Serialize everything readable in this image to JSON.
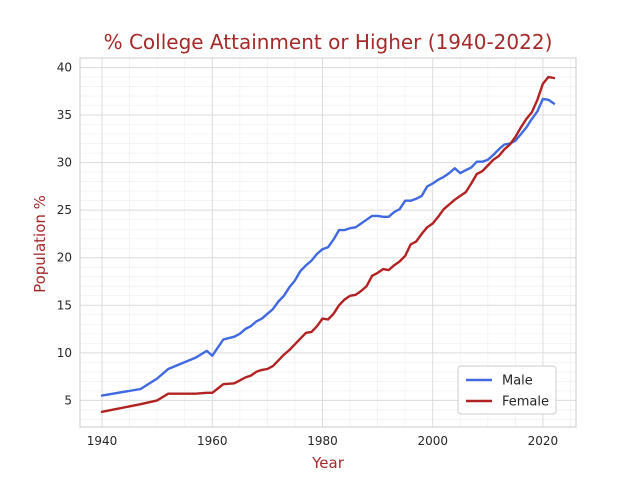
{
  "chart_data": {
    "type": "line",
    "title": "% College Attainment or Higher (1940-2022)",
    "xlabel": "Year",
    "ylabel": "Population %",
    "xlim": [
      1936,
      2026
    ],
    "ylim": [
      2.2,
      41
    ],
    "xticks": [
      1940,
      1960,
      1980,
      2000,
      2020
    ],
    "yticks": [
      5,
      10,
      15,
      20,
      25,
      30,
      35,
      40
    ],
    "grid": true,
    "legend_position": "bottom-right",
    "colors": {
      "title": "#a52a2a",
      "axis_label": "#a52a2a"
    },
    "x": [
      1940,
      1947,
      1950,
      1952,
      1957,
      1959,
      1960,
      1962,
      1964,
      1965,
      1966,
      1967,
      1968,
      1969,
      1970,
      1971,
      1972,
      1973,
      1974,
      1975,
      1976,
      1977,
      1978,
      1979,
      1980,
      1981,
      1982,
      1983,
      1984,
      1985,
      1986,
      1987,
      1988,
      1989,
      1990,
      1991,
      1992,
      1993,
      1994,
      1995,
      1996,
      1997,
      1998,
      1999,
      2000,
      2001,
      2002,
      2003,
      2004,
      2005,
      2006,
      2007,
      2008,
      2009,
      2010,
      2011,
      2012,
      2013,
      2014,
      2015,
      2016,
      2017,
      2018,
      2019,
      2020,
      2021,
      2022
    ],
    "series": [
      {
        "name": "Male",
        "color": "#4169e1",
        "values": [
          5.5,
          6.2,
          7.3,
          8.3,
          9.5,
          10.2,
          9.7,
          11.4,
          11.7,
          12.0,
          12.5,
          12.8,
          13.3,
          13.6,
          14.1,
          14.6,
          15.4,
          16.0,
          16.9,
          17.6,
          18.6,
          19.2,
          19.7,
          20.4,
          20.9,
          21.1,
          21.9,
          22.9,
          22.9,
          23.1,
          23.2,
          23.6,
          24.0,
          24.4,
          24.4,
          24.3,
          24.3,
          24.8,
          25.1,
          26.0,
          26.0,
          26.2,
          26.5,
          27.5,
          27.8,
          28.2,
          28.5,
          28.9,
          29.4,
          28.9,
          29.2,
          29.5,
          30.1,
          30.1,
          30.3,
          30.8,
          31.4,
          31.9,
          32.0,
          32.3,
          33.0,
          33.7,
          34.6,
          35.4,
          36.7,
          36.6,
          36.2
        ]
      },
      {
        "name": "Female",
        "color": "#b22222",
        "values": [
          3.8,
          4.6,
          5.0,
          5.7,
          5.7,
          5.8,
          5.8,
          6.7,
          6.8,
          7.1,
          7.4,
          7.6,
          8.0,
          8.2,
          8.3,
          8.6,
          9.2,
          9.8,
          10.3,
          10.9,
          11.5,
          12.1,
          12.2,
          12.8,
          13.6,
          13.5,
          14.1,
          15.0,
          15.6,
          16.0,
          16.1,
          16.5,
          17.0,
          18.1,
          18.4,
          18.8,
          18.7,
          19.2,
          19.6,
          20.2,
          21.4,
          21.7,
          22.5,
          23.2,
          23.6,
          24.3,
          25.1,
          25.6,
          26.1,
          26.5,
          26.9,
          27.8,
          28.8,
          29.1,
          29.7,
          30.3,
          30.7,
          31.4,
          31.9,
          32.7,
          33.7,
          34.6,
          35.3,
          36.6,
          38.3,
          39.0,
          38.9
        ]
      }
    ]
  }
}
